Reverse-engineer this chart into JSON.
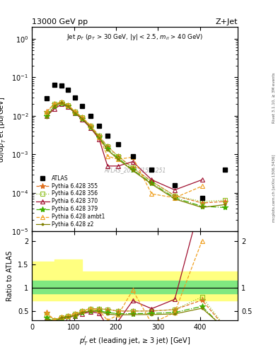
{
  "title_left": "13000 GeV pp",
  "title_right": "Z+Jet",
  "annotation": "Jet $p_T$ ($p_T$ > 30 GeV, |y| < 2.5, $m_{ll}$ > 40 GeV)",
  "watermark": "ATLAS_2017_I1514251",
  "right_label": "Rivet 3.1.10, ≥ 3M events",
  "right_label2": "mcplots.cern.ch [arXiv:1306.3436]",
  "ylabel_main": "dσ/dp$_T^j$ et [pb/GeV]",
  "ylabel_ratio": "Ratio to ATLAS",
  "xlabel": "$p_T^j$ et (leading jet, ≥ 3 jet) [GeV]",
  "xlim": [
    0,
    490
  ],
  "ylim_main": [
    1e-05,
    2.0
  ],
  "ylim_ratio": [
    0.3,
    2.2
  ],
  "atlas_x": [
    35,
    53,
    70,
    86,
    102,
    120,
    140,
    160,
    180,
    205,
    240,
    285,
    340,
    405,
    460
  ],
  "atlas_y": [
    0.028,
    0.065,
    0.062,
    0.048,
    0.03,
    0.018,
    0.01,
    0.0055,
    0.003,
    0.0018,
    0.0009,
    0.0004,
    0.00016,
    7.5e-05,
    0.0004
  ],
  "series": [
    {
      "label": "Pythia 6.428 355",
      "color": "#e07020",
      "linestyle": "--",
      "marker": "*",
      "x": [
        35,
        53,
        70,
        86,
        102,
        120,
        140,
        160,
        180,
        205,
        240,
        285,
        340,
        405,
        460
      ],
      "y": [
        0.013,
        0.02,
        0.022,
        0.019,
        0.013,
        0.009,
        0.0055,
        0.003,
        0.0016,
        0.0009,
        0.00045,
        0.0002,
        8.5e-05,
        5.5e-05,
        6e-05
      ]
    },
    {
      "label": "Pythia 6.428 356",
      "color": "#90c020",
      "linestyle": ":",
      "marker": "s",
      "x": [
        35,
        53,
        70,
        86,
        102,
        120,
        140,
        160,
        180,
        205,
        240,
        285,
        340,
        405,
        460
      ],
      "y": [
        0.012,
        0.02,
        0.022,
        0.019,
        0.013,
        0.009,
        0.0055,
        0.003,
        0.0016,
        0.0009,
        0.00045,
        0.0002,
        8.5e-05,
        6e-05,
        6.5e-05
      ]
    },
    {
      "label": "Pythia 6.428 370",
      "color": "#a01030",
      "linestyle": "-",
      "marker": "^",
      "x": [
        35,
        53,
        70,
        86,
        102,
        120,
        140,
        160,
        180,
        205,
        240,
        285,
        340,
        405,
        460
      ],
      "y": [
        0.01,
        0.015,
        0.02,
        0.017,
        0.012,
        0.008,
        0.0048,
        0.0025,
        0.0005,
        0.0005,
        0.00065,
        0.00022,
        0.00012,
        0.00022,
        null
      ]
    },
    {
      "label": "Pythia 6.428 379",
      "color": "#40b000",
      "linestyle": "-.",
      "marker": "*",
      "x": [
        35,
        53,
        70,
        86,
        102,
        120,
        140,
        160,
        180,
        205,
        240,
        285,
        340,
        405,
        460
      ],
      "y": [
        0.01,
        0.018,
        0.021,
        0.018,
        0.012,
        0.0085,
        0.005,
        0.0028,
        0.0014,
        0.0008,
        0.0004,
        0.00018,
        7.5e-05,
        4.5e-05,
        4.2e-05
      ]
    },
    {
      "label": "Pythia 6.428 ambt1",
      "color": "#f0a020",
      "linestyle": "--",
      "marker": "^",
      "x": [
        35,
        53,
        70,
        86,
        102,
        120,
        140,
        160,
        180,
        205,
        240,
        285,
        340,
        405,
        460
      ],
      "y": [
        0.013,
        0.02,
        0.023,
        0.019,
        0.013,
        0.009,
        0.0055,
        0.0028,
        0.0009,
        0.00075,
        0.00085,
        9.5e-05,
        7.5e-05,
        0.00015,
        null
      ]
    },
    {
      "label": "Pythia 6.428 z2",
      "color": "#808000",
      "linestyle": "-",
      "marker": ".",
      "x": [
        35,
        53,
        70,
        86,
        102,
        120,
        140,
        160,
        180,
        205,
        240,
        285,
        340,
        405,
        460
      ],
      "y": [
        0.009,
        0.018,
        0.022,
        0.018,
        0.012,
        0.0085,
        0.005,
        0.0027,
        0.0013,
        0.00075,
        0.00038,
        0.00017,
        7e-05,
        4.2e-05,
        5e-05
      ]
    }
  ],
  "band_edges": [
    0,
    53,
    120,
    205,
    285,
    405,
    490
  ],
  "band_green_low": [
    0.87,
    0.88,
    0.88,
    0.88,
    0.88,
    0.88,
    0.88
  ],
  "band_green_high": [
    1.15,
    1.15,
    1.15,
    1.15,
    1.15,
    1.15,
    1.15
  ],
  "band_yellow_low": [
    0.72,
    0.73,
    0.73,
    0.73,
    0.73,
    0.73,
    0.73
  ],
  "band_yellow_high": [
    1.55,
    1.6,
    1.35,
    1.35,
    1.35,
    1.35,
    1.35
  ]
}
